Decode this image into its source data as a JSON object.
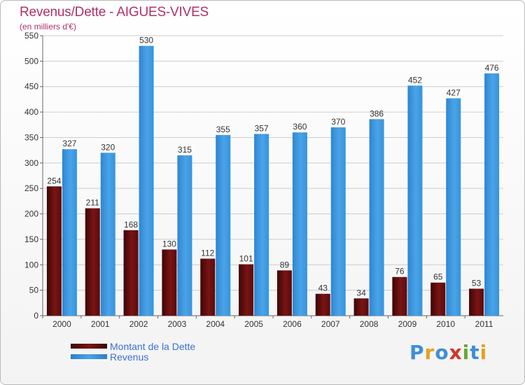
{
  "title": "Revenus/Dette - AIGUES-VIVES",
  "subtitle": "(en milliers d'€)",
  "logo": "Proxiti",
  "colors": {
    "dette": "#7a1414",
    "revenus": "#4aa3e8",
    "title": "#b0306a",
    "legend_text": "#3d6fd6",
    "grid": "#cccccc"
  },
  "chart_data": {
    "type": "bar",
    "title": "Revenus/Dette - AIGUES-VIVES",
    "subtitle": "(en milliers d'€)",
    "categories": [
      "2000",
      "2001",
      "2002",
      "2003",
      "2004",
      "2005",
      "2006",
      "2007",
      "2008",
      "2009",
      "2010",
      "2011"
    ],
    "series": [
      {
        "name": "Montant de la Dette",
        "values": [
          254,
          211,
          168,
          130,
          112,
          101,
          89,
          43,
          34,
          76,
          65,
          53
        ]
      },
      {
        "name": "Revenus",
        "values": [
          327,
          320,
          530,
          315,
          355,
          357,
          360,
          370,
          386,
          452,
          427,
          476
        ]
      }
    ],
    "ylim": [
      0,
      550
    ],
    "yticks": [
      0,
      50,
      100,
      150,
      200,
      250,
      300,
      350,
      400,
      450,
      500,
      550
    ],
    "grid": true,
    "legend_position": "bottom-left"
  }
}
